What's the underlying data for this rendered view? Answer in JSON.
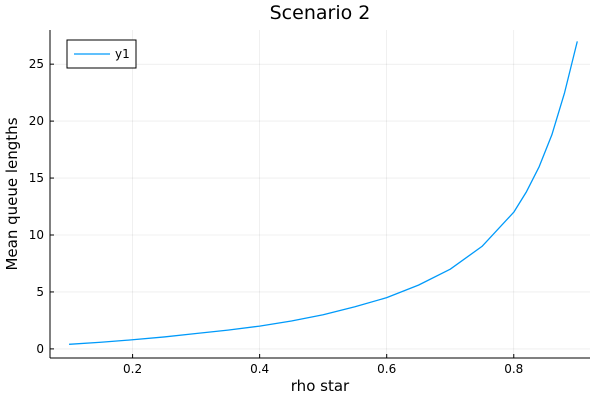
{
  "chart_data": {
    "type": "line",
    "title": "Scenario 2",
    "xlabel": "rho star",
    "ylabel": "Mean queue lengths",
    "xlim": [
      0.07,
      0.92
    ],
    "ylim": [
      -0.8,
      28
    ],
    "x_ticks": [
      0.2,
      0.4,
      0.6,
      0.8
    ],
    "x_tick_labels": [
      "0.2",
      "0.4",
      "0.6",
      "0.8"
    ],
    "y_ticks": [
      0,
      5,
      10,
      15,
      20,
      25
    ],
    "y_tick_labels": [
      "0",
      "5",
      "10",
      "15",
      "20",
      "25"
    ],
    "grid": true,
    "legend_position": "top-left",
    "series": [
      {
        "name": "y1",
        "color": "#009AFA",
        "x": [
          0.1,
          0.15,
          0.2,
          0.25,
          0.3,
          0.35,
          0.4,
          0.45,
          0.5,
          0.55,
          0.6,
          0.65,
          0.7,
          0.75,
          0.8,
          0.82,
          0.84,
          0.86,
          0.88,
          0.9
        ],
        "y": [
          0.4,
          0.58,
          0.8,
          1.05,
          1.35,
          1.65,
          2.0,
          2.45,
          3.0,
          3.7,
          4.5,
          5.6,
          7.0,
          9.0,
          12.0,
          13.8,
          16.0,
          18.8,
          22.5,
          27.0
        ]
      }
    ]
  }
}
